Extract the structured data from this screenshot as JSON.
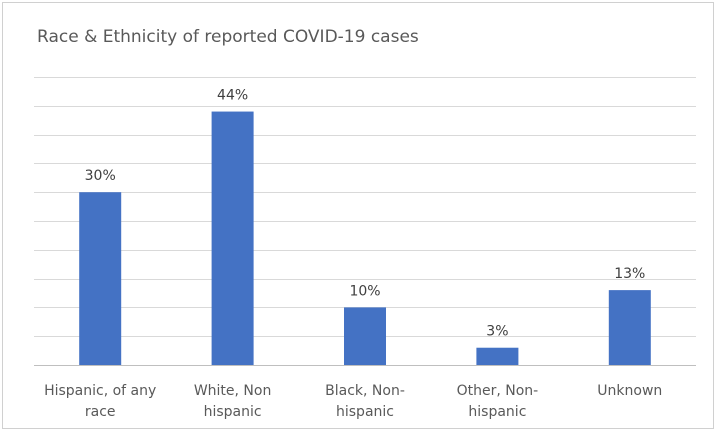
{
  "chart_data": {
    "type": "bar",
    "title": "Race & Ethnicity of reported COVID-19 cases",
    "categories": [
      [
        "Hispanic, of any",
        "race"
      ],
      [
        "White, Non",
        "hispanic"
      ],
      [
        "Black, Non-",
        "hispanic"
      ],
      [
        "Other, Non-",
        "hispanic"
      ],
      [
        "Unknown"
      ]
    ],
    "values": [
      30,
      44,
      10,
      3,
      13
    ],
    "data_labels": [
      "30%",
      "44%",
      "10%",
      "3%",
      "13%"
    ],
    "ylim": [
      0,
      50
    ],
    "grid": true,
    "legend": "none",
    "bar_color": "#4472C4"
  }
}
